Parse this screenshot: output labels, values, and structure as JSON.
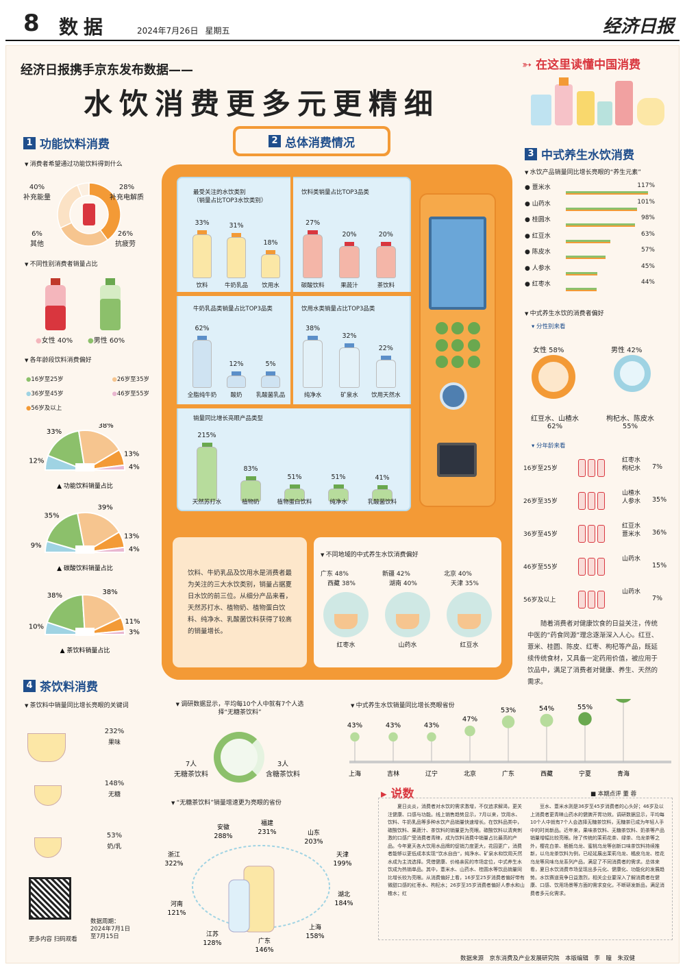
{
  "header": {
    "page": "8",
    "section": "数据",
    "date": "2024年7月26日",
    "weekday": "星期五",
    "paper": "经济日报"
  },
  "kicker": "经济日报携手京东发布数据——",
  "title": "水饮消费更多元更精细",
  "badge": "在这里读懂中国消费",
  "s1": {
    "title": "功能饮料消费",
    "num": "1",
    "q1": "消费者希望通过功能饮料得到什么",
    "donut": [
      {
        "label": "补充能量",
        "value": 40,
        "color": "#f39a36"
      },
      {
        "label": "补充电解质",
        "value": 28,
        "color": "#f6c58f"
      },
      {
        "label": "抗疲劳",
        "value": 26,
        "color": "#fbe2c5"
      },
      {
        "label": "其他",
        "value": 6,
        "color": "#fcefe0"
      }
    ],
    "q2": "不同性别消费者销量占比",
    "female": "女性 40%",
    "male": "男性 60%",
    "q3": "各年龄段饮料消费偏好",
    "ages": [
      "16岁至25岁",
      "26岁至35岁",
      "36岁至45岁",
      "46岁至55岁",
      "56岁及以上"
    ],
    "fans": [
      {
        "caption": "功能饮料销量占比",
        "values": [
          12,
          33,
          38,
          13,
          4
        ]
      },
      {
        "caption": "碳酸饮料销量占比",
        "values": [
          9,
          35,
          39,
          13,
          4
        ]
      },
      {
        "caption": "茶饮料销量占比",
        "values": [
          10,
          38,
          38,
          11,
          3
        ]
      }
    ]
  },
  "s2": {
    "title": "总体消费情况",
    "num": "2",
    "p1title": "最受关注的水饮类别\n（销量占比TOP3水饮类别）",
    "p2title": "饮料类销量占比TOP3品类",
    "p3title": "牛奶乳品类销量占比TOP3品类",
    "p4title": "饮用水类销量占比TOP3品类",
    "p5title": "销量同比增长亮眼产品类型",
    "text": "饮料、牛奶乳品及饮用水是消费者最为关注的三大水饮类别，销量占据夏日水饮的前三位。从细分产品来看，天然苏打水、植物奶、植物蛋白饮料、纯净水、乳酸菌饮料获得了较高的销量增长。",
    "regiontitle": "不同地域的中式养生水饮消费偏好",
    "regions": [
      {
        "a": "广东 48%",
        "b": "西藏 38%",
        "drink": "红枣水"
      },
      {
        "a": "新疆 42%",
        "b": "湖南 40%",
        "drink": "山药水"
      },
      {
        "a": "北京 40%",
        "b": "天津 35%",
        "drink": "红豆水"
      }
    ]
  },
  "s3": {
    "title": "中式养生水饮消费",
    "num": "3",
    "q1": "水饮产品销量同比增长亮眼的“养生元素”",
    "pref": "中式养生水饮的消费者偏好",
    "bygender": "分性别来看",
    "byage": "分年龄来看",
    "female": "女性 58%",
    "male": "男性 42%",
    "f_items": "红豆水、山楂水",
    "f_pct": "62%",
    "m_items": "枸杞水、陈皮水",
    "m_pct": "55%",
    "agerows": [
      {
        "age": "16岁至25岁",
        "items": "红枣水\n枸杞水",
        "pct": "7%"
      },
      {
        "age": "26岁至35岁",
        "items": "山楂水\n人参水",
        "pct": "35%"
      },
      {
        "age": "36岁至45岁",
        "items": "红豆水\n薏米水",
        "pct": "36%"
      },
      {
        "age": "46岁至55岁",
        "items": "山药水",
        "pct": "15%"
      },
      {
        "age": "56岁及以上",
        "items": "山药水",
        "pct": "7%"
      }
    ],
    "text": "随着消费者对健康饮食的日益关注，传统中医的“药食同源”理念逐渐深入人心。红豆、薏米、桂圆、陈皮、红枣、枸杞等产品，既延续传统食材，又具备一定药用价值，被应用于饮品中，满足了消费者对健康、养生、天然的需求。"
  },
  "s4": {
    "title": "茶饮料消费",
    "num": "4",
    "q1": "茶饮料中销量同比增长亮眼的关键词",
    "kw": [
      {
        "pct": "232%",
        "label": "果味"
      },
      {
        "pct": "148%",
        "label": "无糖"
      },
      {
        "pct": "53%",
        "label": "奶/乳"
      }
    ],
    "survey": "调研数据显示，平均每10个人中就有7个人选择“无糖茶饮料”",
    "left": "7人",
    "leftlabel": "无糖茶饮料",
    "right": "3人",
    "rightlabel": "含糖茶饮料",
    "prov_title": "“无糖茶饮料”销量增速更为亮眼的省份",
    "prov": [
      {
        "n": "安徽",
        "v": "288%"
      },
      {
        "n": "福建",
        "v": "231%"
      },
      {
        "n": "山东",
        "v": "203%"
      },
      {
        "n": "天津",
        "v": "199%"
      },
      {
        "n": "湖北",
        "v": "184%"
      },
      {
        "n": "上海",
        "v": "158%"
      },
      {
        "n": "广东",
        "v": "146%"
      },
      {
        "n": "江苏",
        "v": "128%"
      },
      {
        "n": "河南",
        "v": "121%"
      },
      {
        "n": "浙江",
        "v": "322%"
      }
    ],
    "qrcap": "更多内容 扫码观看",
    "period": "数据周期：\n2024年7月1日\n至7月15日"
  },
  "growth": {
    "title": "中式养生水饮销量同比增长亮眼省份",
    "cities": [
      "上海",
      "吉林",
      "辽宁",
      "北京",
      "广东",
      "西藏",
      "宁夏",
      "青海"
    ],
    "values": [
      "43%",
      "43%",
      "43%",
      "47%",
      "53%",
      "54%",
      "55%",
      "72%"
    ]
  },
  "shuo": {
    "title": "说数",
    "author": "本期点评 董 蓉",
    "col1": "夏日炎炎，消费者对水饮的需求激增，不仅追求解渴，更关注健康、口感与功能。线上销售趋势显示，7月以来，饮用水、饮料、牛奶乳品等多种水饮产品销量快速增长。在饮料品类中，碳酸饮料、果蔬汁、茶饮料的销量更为亮眼。碳酸饮料以清爽刺激的口感广受消费者青睐，成为饮料消费中销量占比最高的产品。今年夏天各大饮用水品牌的促销力度更大，花园更广，消费者能够以更低成本实现“饮水自由”，纯净水、矿泉水和饮用天然水成为主流选择。凭借健康、价格亲民的市场定位，中式养生水饮成为热销单品。其中，薏米水、山药水、桂圆水等饮品销量同比增长较为亮眼。从消费偏好上看，16岁至25岁消费者偏好带有微甜口感的红枣水、枸杞水；26岁至35岁消费者偏好人参水和山楂水；红",
    "col2": "豆水、薏米水则是36岁至45岁消费者的心头好；46岁及以上消费者更青睐山药水的健脾开胃功效。调研数据显示，平均每10个人中就有7个人会选择无糖茶饮料，无糖茶已成为年轻人手中的时尚新品。近年来，果味茶饮料、无糖茶饮料、奶茶等产品销量增幅比较亮眼。除了传统的茉莉花茶、绿茶、乌龙茶等之外，樱花白茶、栀栀乌龙、蜜桃乌龙等创新口味茶饮料持续推新，以乌龙茶饮料为例，已经延展出茉莉乌龙、橘皮乌龙、桂花乌龙等风味乌龙系列产品，满足了不同消费者的需求。总体来看，夏日水饮消费市场呈现出多元化、健康化、功能化的发展趋势。水饮赛道竞争日益激烈，相关企业要深入了解消费者在健康、口感、饮用场景等方面的需求变化，不断研发新品，满足消费者多元化需求。"
  },
  "source": "数据来源　京东消费及产业发展研究院　本版编辑　李　瞳　朱双健",
  "chart_data": [
    {
      "type": "bar",
      "title": "饮料类销量占比TOP3品类",
      "categories": [
        "碳酸饮料",
        "果蔬汁",
        "茶饮料"
      ],
      "values": [
        27,
        20,
        20
      ],
      "unit": "%"
    },
    {
      "type": "bar",
      "title": "",
      "categories": [
        "饮料",
        "牛奶乳品",
        "饮用水"
      ],
      "values": [
        33,
        31,
        18
      ],
      "unit": "%"
    },
    {
      "type": "bar",
      "title": "牛奶乳品类销量占比TOP3品类",
      "categories": [
        "全脂纯牛奶",
        "酸奶",
        "乳酸菌乳品"
      ],
      "values": [
        62,
        12,
        5
      ],
      "unit": "%"
    },
    {
      "type": "bar",
      "title": "饮用水类销量占比TOP3品类",
      "categories": [
        "纯净水",
        "矿泉水",
        "饮用天然水"
      ],
      "values": [
        38,
        32,
        22
      ],
      "unit": "%"
    },
    {
      "type": "bar",
      "title": "销量同比增长亮眼产品类型",
      "categories": [
        "天然苏打水",
        "植物奶",
        "植物蛋白饮料",
        "纯净水",
        "乳酸菌饮料"
      ],
      "values": [
        215,
        83,
        51,
        51,
        41
      ],
      "unit": "%"
    },
    {
      "type": "bar",
      "title": "水饮产品销量同比增长亮眼的“养生元素”",
      "categories": [
        "薏米水",
        "山药水",
        "桂圆水",
        "红豆水",
        "陈皮水",
        "人参水",
        "红枣水"
      ],
      "values": [
        117,
        101,
        98,
        63,
        57,
        45,
        44
      ],
      "unit": "%"
    },
    {
      "type": "pie",
      "title": "消费者希望通过功能饮料得到什么",
      "categories": [
        "补充能量",
        "补充电解质",
        "抗疲劳",
        "其他"
      ],
      "values": [
        40,
        28,
        26,
        6
      ]
    },
    {
      "type": "line",
      "title": "中式养生水饮销量同比增长亮眼省份",
      "categories": [
        "上海",
        "吉林",
        "辽宁",
        "北京",
        "广东",
        "西藏",
        "宁夏",
        "青海"
      ],
      "values": [
        43,
        43,
        43,
        47,
        53,
        54,
        55,
        72
      ]
    }
  ]
}
